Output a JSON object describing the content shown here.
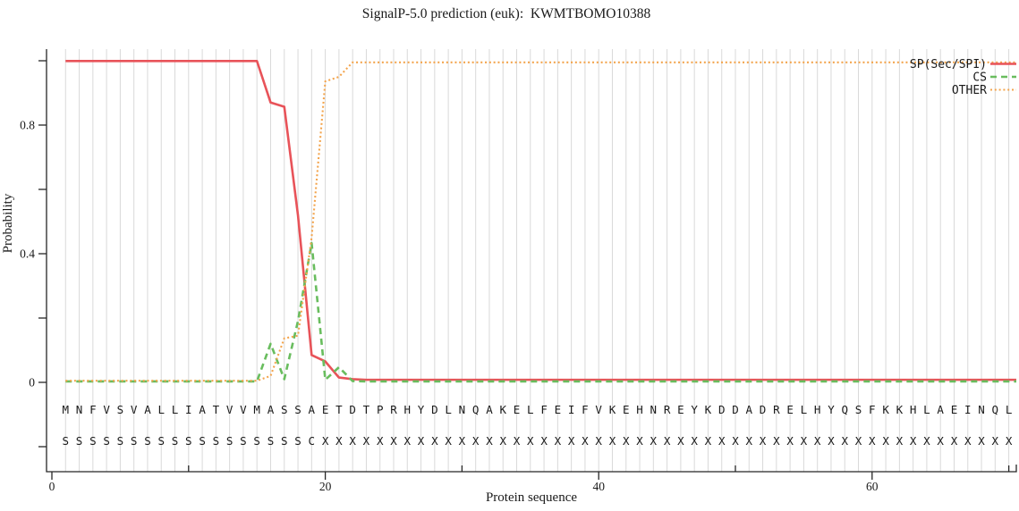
{
  "chart_data": {
    "type": "line",
    "title": "SignalP-5.0 prediction (euk):  KWMTBOMO10388",
    "xlabel": "Protein sequence",
    "ylabel": "Probability",
    "xlim": [
      0,
      70.5
    ],
    "ylim": [
      -0.29,
      1.03
    ],
    "x_major_ticks": [
      0,
      20,
      40,
      60
    ],
    "x_major_tick_labels": [
      "0",
      "20",
      "40",
      "60"
    ],
    "x_minor_ticks": [
      10,
      30,
      50,
      70
    ],
    "y_major_ticks": [
      0,
      0.4,
      0.8
    ],
    "y_major_tick_labels": [
      "0",
      "0.4",
      "0.8"
    ],
    "y_minor_ticks": [
      -0.2,
      0.2,
      0.6,
      1.0
    ],
    "grid": "vertical-per-residue",
    "grid_color": "#d9d9d9",
    "axis_color": "#262626",
    "text_color": "#1a1a1a",
    "legend_position": "top-right",
    "sequence": "MNFVSVALLIATVVMASSAETDTPRHYDLNQAKELFEIFVKEHNREYKDDADRELHYQSFKKHLAEINQL",
    "annotation": "SSSSSSSSSSSSSSSSSSCXXXXXXXXXXXXXXXXXXXXXXXXXXXXXXXXXXXXXXXXXXXXXXXXXXX",
    "series": [
      {
        "name": "SP(Sec/SPI)",
        "color": "#e85359",
        "style": "solid",
        "values": [
          0.999,
          0.999,
          0.999,
          0.999,
          0.999,
          0.999,
          0.999,
          0.999,
          0.999,
          0.999,
          0.999,
          0.999,
          0.999,
          0.999,
          0.999,
          0.87,
          0.857,
          0.52,
          0.085,
          0.065,
          0.015,
          0.01,
          0.008,
          0.008,
          0.008,
          0.008,
          0.008,
          0.008,
          0.008,
          0.008,
          0.008,
          0.008,
          0.008,
          0.008,
          0.008,
          0.008,
          0.008,
          0.008,
          0.008,
          0.008,
          0.008,
          0.008,
          0.008,
          0.008,
          0.008,
          0.008,
          0.008,
          0.008,
          0.008,
          0.008,
          0.008,
          0.008,
          0.008,
          0.008,
          0.008,
          0.008,
          0.008,
          0.008,
          0.008,
          0.008,
          0.008,
          0.008,
          0.008,
          0.008,
          0.008,
          0.008,
          0.008,
          0.008,
          0.008,
          0.008
        ]
      },
      {
        "name": "CS",
        "color": "#69bd5e",
        "style": "dashed",
        "values": [
          0.003,
          0.003,
          0.003,
          0.003,
          0.003,
          0.003,
          0.003,
          0.003,
          0.003,
          0.003,
          0.003,
          0.003,
          0.003,
          0.003,
          0.003,
          0.12,
          0.01,
          0.19,
          0.433,
          0.008,
          0.047,
          0.004,
          0.003,
          0.003,
          0.003,
          0.003,
          0.003,
          0.003,
          0.003,
          0.003,
          0.003,
          0.003,
          0.003,
          0.003,
          0.003,
          0.003,
          0.003,
          0.003,
          0.003,
          0.003,
          0.003,
          0.003,
          0.003,
          0.003,
          0.003,
          0.003,
          0.003,
          0.003,
          0.003,
          0.003,
          0.003,
          0.003,
          0.003,
          0.003,
          0.003,
          0.003,
          0.003,
          0.003,
          0.003,
          0.003,
          0.003,
          0.003,
          0.003,
          0.003,
          0.003,
          0.003,
          0.003,
          0.003,
          0.003,
          0.003
        ]
      },
      {
        "name": "OTHER",
        "color": "#f3a44c",
        "style": "dotted",
        "values": [
          0.005,
          0.005,
          0.005,
          0.005,
          0.005,
          0.005,
          0.005,
          0.005,
          0.005,
          0.005,
          0.005,
          0.005,
          0.005,
          0.005,
          0.005,
          0.02,
          0.137,
          0.145,
          0.45,
          0.936,
          0.95,
          0.995,
          0.995,
          0.995,
          0.995,
          0.995,
          0.995,
          0.995,
          0.995,
          0.995,
          0.995,
          0.995,
          0.995,
          0.995,
          0.995,
          0.995,
          0.995,
          0.995,
          0.995,
          0.995,
          0.995,
          0.995,
          0.995,
          0.995,
          0.995,
          0.995,
          0.995,
          0.995,
          0.995,
          0.995,
          0.995,
          0.995,
          0.995,
          0.995,
          0.995,
          0.995,
          0.995,
          0.995,
          0.995,
          0.995,
          0.995,
          0.995,
          0.995,
          0.995,
          0.995,
          0.995,
          0.995,
          0.995,
          0.995,
          0.995
        ]
      }
    ]
  }
}
